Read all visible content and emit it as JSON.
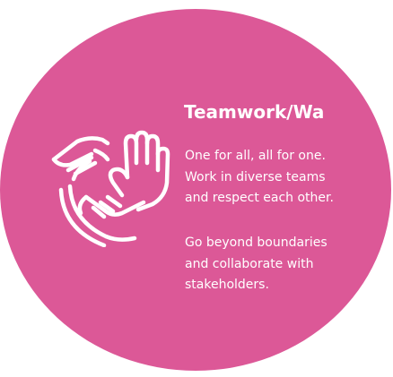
{
  "colors": {
    "circle": "#dc5897",
    "text": "#ffffff",
    "background": "#ffffff"
  },
  "icon": "teamwork-hands-icon",
  "card": {
    "title": "Teamwork/Wa",
    "paragraph1": [
      "One for all, all for one.",
      "Work in diverse teams",
      "and respect each other."
    ],
    "paragraph2": [
      "Go beyond boundaries",
      "and collaborate with",
      "stakeholders."
    ]
  }
}
